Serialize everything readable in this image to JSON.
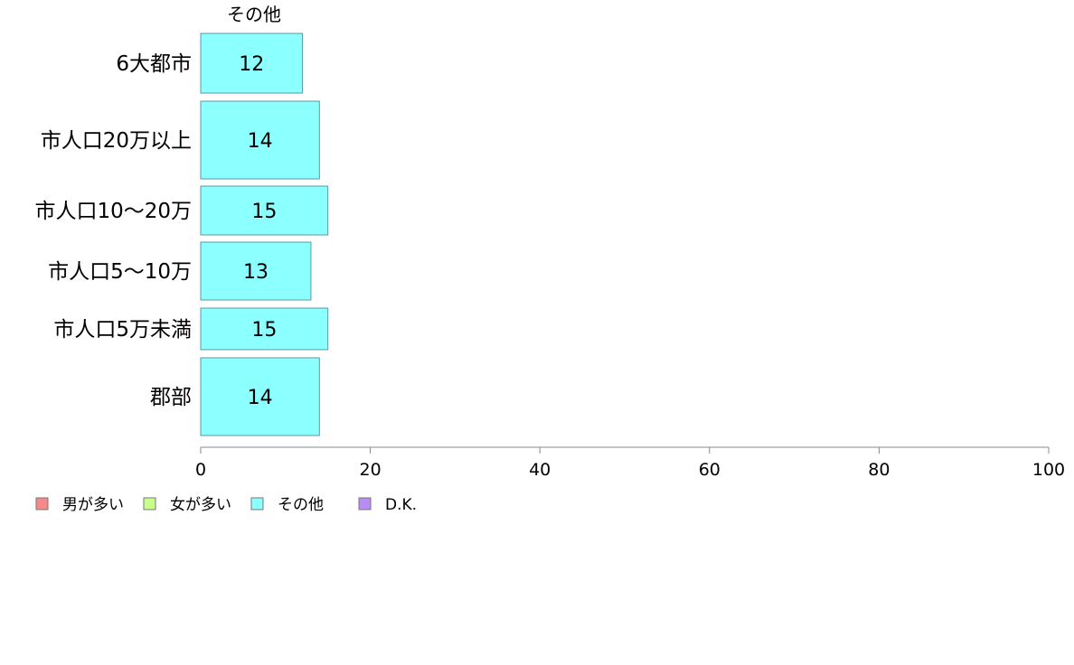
{
  "chart_data": {
    "type": "bar",
    "orientation": "horizontal",
    "stacked": true,
    "categories": [
      "6大都市",
      "市人口20万以上",
      "市人口10〜20万",
      "市人口5〜10万",
      "市人口5万未満",
      "郡部"
    ],
    "series": [
      {
        "name": "その他",
        "values": [
          12,
          14,
          15,
          13,
          15,
          14
        ]
      }
    ],
    "series_header": "その他",
    "xlim": [
      0,
      100
    ],
    "xticks": [
      0,
      20,
      40,
      60,
      80,
      100
    ],
    "grid": false,
    "legend": {
      "placement": "bottom-left",
      "items": [
        {
          "label": "男が多い",
          "color": "#f48a8a"
        },
        {
          "label": "女が多い",
          "color": "#c8ff8c"
        },
        {
          "label": "その他",
          "color": "#8cffff"
        },
        {
          "label": "D.K.",
          "color": "#b88cf0"
        }
      ]
    },
    "colors": {
      "bar_fill": "#8cffff",
      "bar_stroke": "#5a9aa0",
      "axis": "#888888"
    }
  }
}
